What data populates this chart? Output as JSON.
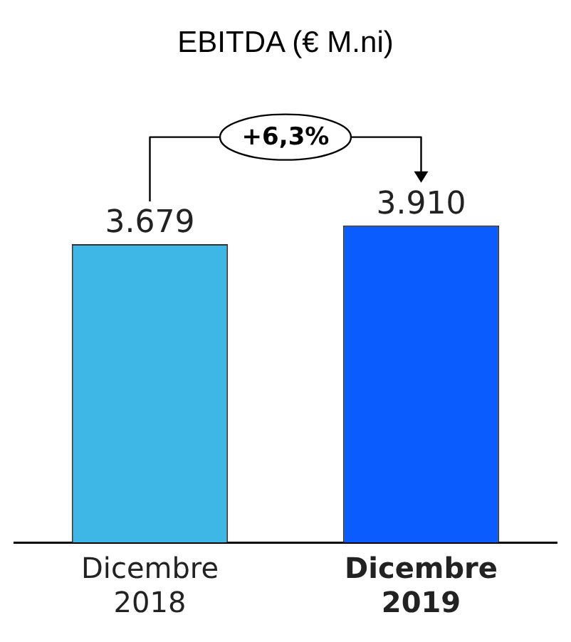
{
  "chart_data": {
    "type": "bar",
    "title": "EBITDA (€ M.ni)",
    "categories": [
      "Dicembre\n2018",
      "Dicembre\n2019"
    ],
    "values": [
      3679,
      3910
    ],
    "colors": [
      "#3eb6e6",
      "#0a5cff"
    ],
    "value_labels": [
      "3.679",
      "3.910"
    ],
    "tick_labels": "x",
    "annotations": [
      "+6,3%"
    ],
    "grid": false,
    "legend": false
  }
}
